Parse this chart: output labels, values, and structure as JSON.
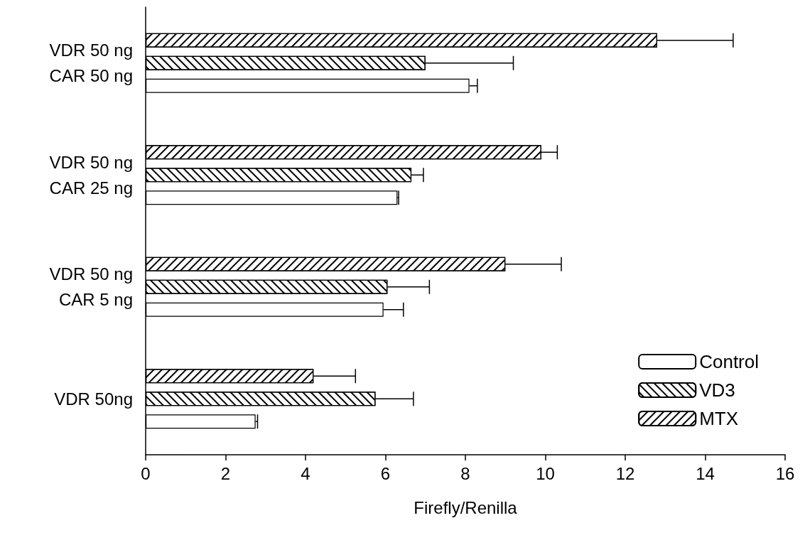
{
  "chart_data": {
    "type": "bar",
    "orientation": "horizontal",
    "xlabel": "Firefly/Renilla",
    "categories": [
      "VDR 50 ng\nCAR 50 ng",
      "VDR 50 ng\nCAR 25 ng",
      "VDR 50 ng\nCAR 5 ng",
      "VDR 50ng"
    ],
    "series": [
      {
        "name": "Control",
        "color": "#ffffff",
        "values": [
          8.1,
          6.3,
          5.95,
          2.75
        ],
        "errors": [
          0.2,
          0.03,
          0.5,
          0.05
        ]
      },
      {
        "name": "VD3",
        "color": "#ffffff",
        "values": [
          7.0,
          6.65,
          6.05,
          5.75
        ],
        "errors": [
          2.2,
          0.3,
          1.05,
          0.95
        ]
      },
      {
        "name": "MTX",
        "color": "#ffffff",
        "values": [
          12.8,
          9.9,
          9.0,
          4.2
        ],
        "errors": [
          1.9,
          0.4,
          1.4,
          1.05
        ]
      }
    ],
    "xlim": [
      0,
      16
    ],
    "xticks": [
      0,
      2,
      4,
      6,
      8,
      10,
      12,
      14,
      16
    ],
    "grid": false,
    "legend": "bottom right"
  }
}
